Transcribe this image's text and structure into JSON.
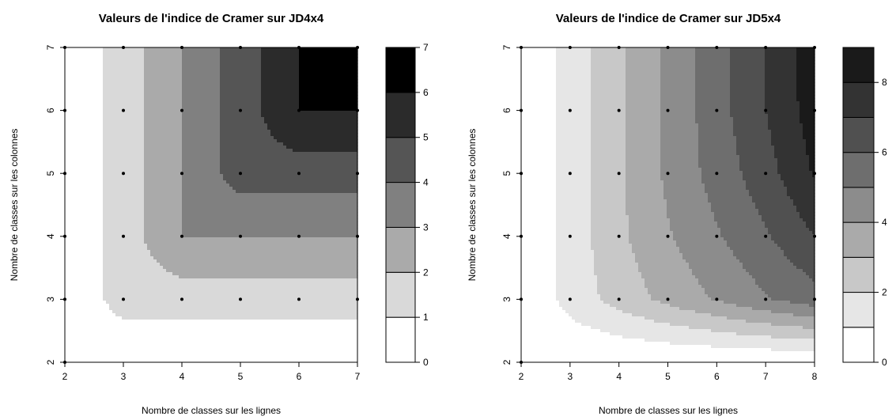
{
  "chart_data": [
    {
      "type": "heatmap",
      "subtype": "filled-contour",
      "title": "Valeurs de l'indice de Cramer sur JD4x4",
      "xlabel": "Nombre de classes sur les lignes",
      "ylabel": "Nombre de classes sur les colonnes",
      "x": [
        2,
        3,
        4,
        5,
        6,
        7
      ],
      "y": [
        2,
        3,
        4,
        5,
        6,
        7
      ],
      "xlim": [
        2,
        7
      ],
      "ylim": [
        2,
        7
      ],
      "x_ticks": [
        "2",
        "3",
        "4",
        "5",
        "6",
        "7"
      ],
      "y_ticks": [
        "2",
        "3",
        "4",
        "5",
        "6",
        "7"
      ],
      "levels": [
        0,
        1,
        2,
        3,
        4,
        5,
        6,
        7
      ],
      "colorbar_ticks": [
        "0",
        "1",
        "2",
        "3",
        "4",
        "5",
        "6",
        "7"
      ],
      "colors": [
        "#ffffff",
        "#d9d9d9",
        "#aaaaaa",
        "#808080",
        "#555555",
        "#2b2b2b",
        "#000000"
      ],
      "values": [
        [
          0.0,
          0.0,
          0.0,
          0.0,
          0.0,
          0.0
        ],
        [
          0.0,
          1.5,
          1.5,
          1.5,
          1.5,
          1.5
        ],
        [
          0.0,
          1.5,
          3.0,
          3.0,
          3.0,
          3.0
        ],
        [
          0.0,
          1.5,
          3.0,
          4.5,
          4.5,
          4.5
        ],
        [
          0.0,
          1.5,
          3.0,
          4.5,
          6.0,
          6.0
        ],
        [
          0.0,
          1.5,
          3.0,
          4.5,
          6.0,
          7.5
        ]
      ],
      "points": [
        [
          2,
          2
        ],
        [
          2,
          3
        ],
        [
          2,
          4
        ],
        [
          2,
          5
        ],
        [
          2,
          6
        ],
        [
          2,
          7
        ],
        [
          3,
          3
        ],
        [
          3,
          4
        ],
        [
          3,
          5
        ],
        [
          3,
          6
        ],
        [
          3,
          7
        ],
        [
          4,
          3
        ],
        [
          4,
          4
        ],
        [
          4,
          5
        ],
        [
          4,
          6
        ],
        [
          4,
          7
        ],
        [
          5,
          3
        ],
        [
          5,
          4
        ],
        [
          5,
          5
        ],
        [
          5,
          6
        ],
        [
          5,
          7
        ],
        [
          6,
          3
        ],
        [
          6,
          4
        ],
        [
          6,
          5
        ],
        [
          6,
          6
        ],
        [
          6,
          7
        ],
        [
          7,
          3
        ],
        [
          7,
          4
        ],
        [
          7,
          5
        ],
        [
          7,
          6
        ],
        [
          7,
          7
        ]
      ]
    },
    {
      "type": "heatmap",
      "subtype": "filled-contour",
      "title": "Valeurs de l'indice de Cramer sur JD5x4",
      "xlabel": "Nombre de classes sur les lignes",
      "ylabel": "Nombre de classes sur les colonnes",
      "x": [
        2,
        3,
        4,
        5,
        6,
        7,
        8
      ],
      "y": [
        2,
        3,
        4,
        5,
        6,
        7
      ],
      "xlim": [
        2,
        8
      ],
      "ylim": [
        2,
        7
      ],
      "x_ticks": [
        "2",
        "3",
        "4",
        "5",
        "6",
        "7",
        "8"
      ],
      "y_ticks": [
        "2",
        "3",
        "4",
        "5",
        "6",
        "7"
      ],
      "levels": [
        0,
        1,
        2,
        3,
        4,
        5,
        6,
        7,
        8,
        9
      ],
      "colorbar_ticks": [
        "0",
        "2",
        "4",
        "6",
        "8"
      ],
      "colorbar_tick_values": [
        0,
        2,
        4,
        6,
        8
      ],
      "colors": [
        "#ffffff",
        "#e6e6e6",
        "#c8c8c8",
        "#aaaaaa",
        "#8c8c8c",
        "#6e6e6e",
        "#505050",
        "#333333",
        "#1a1a1a",
        "#000000"
      ],
      "values": [
        [
          0.0,
          0.0,
          0.0,
          0.0,
          0.0,
          0.0,
          0.0
        ],
        [
          0.0,
          1.4,
          2.4,
          3.3,
          4.1,
          4.9,
          5.6
        ],
        [
          0.0,
          1.4,
          2.8,
          3.9,
          4.9,
          5.9,
          7.0
        ],
        [
          0.0,
          1.4,
          2.8,
          4.2,
          5.4,
          6.6,
          8.1
        ],
        [
          0.0,
          1.4,
          2.8,
          4.2,
          5.6,
          7.0,
          8.5
        ],
        [
          0.0,
          1.4,
          2.8,
          4.2,
          5.6,
          7.0,
          8.6
        ]
      ],
      "points": [
        [
          2,
          2
        ],
        [
          2,
          3
        ],
        [
          2,
          4
        ],
        [
          2,
          5
        ],
        [
          2,
          6
        ],
        [
          2,
          7
        ],
        [
          3,
          3
        ],
        [
          3,
          4
        ],
        [
          3,
          5
        ],
        [
          3,
          6
        ],
        [
          3,
          7
        ],
        [
          4,
          3
        ],
        [
          4,
          4
        ],
        [
          4,
          5
        ],
        [
          4,
          6
        ],
        [
          4,
          7
        ],
        [
          5,
          3
        ],
        [
          5,
          4
        ],
        [
          5,
          5
        ],
        [
          5,
          6
        ],
        [
          5,
          7
        ],
        [
          6,
          3
        ],
        [
          6,
          4
        ],
        [
          6,
          5
        ],
        [
          6,
          6
        ],
        [
          6,
          7
        ],
        [
          7,
          3
        ],
        [
          7,
          4
        ],
        [
          7,
          5
        ],
        [
          7,
          6
        ],
        [
          7,
          7
        ],
        [
          8,
          3
        ],
        [
          8,
          4
        ],
        [
          8,
          5
        ],
        [
          8,
          6
        ],
        [
          8,
          7
        ]
      ]
    }
  ]
}
